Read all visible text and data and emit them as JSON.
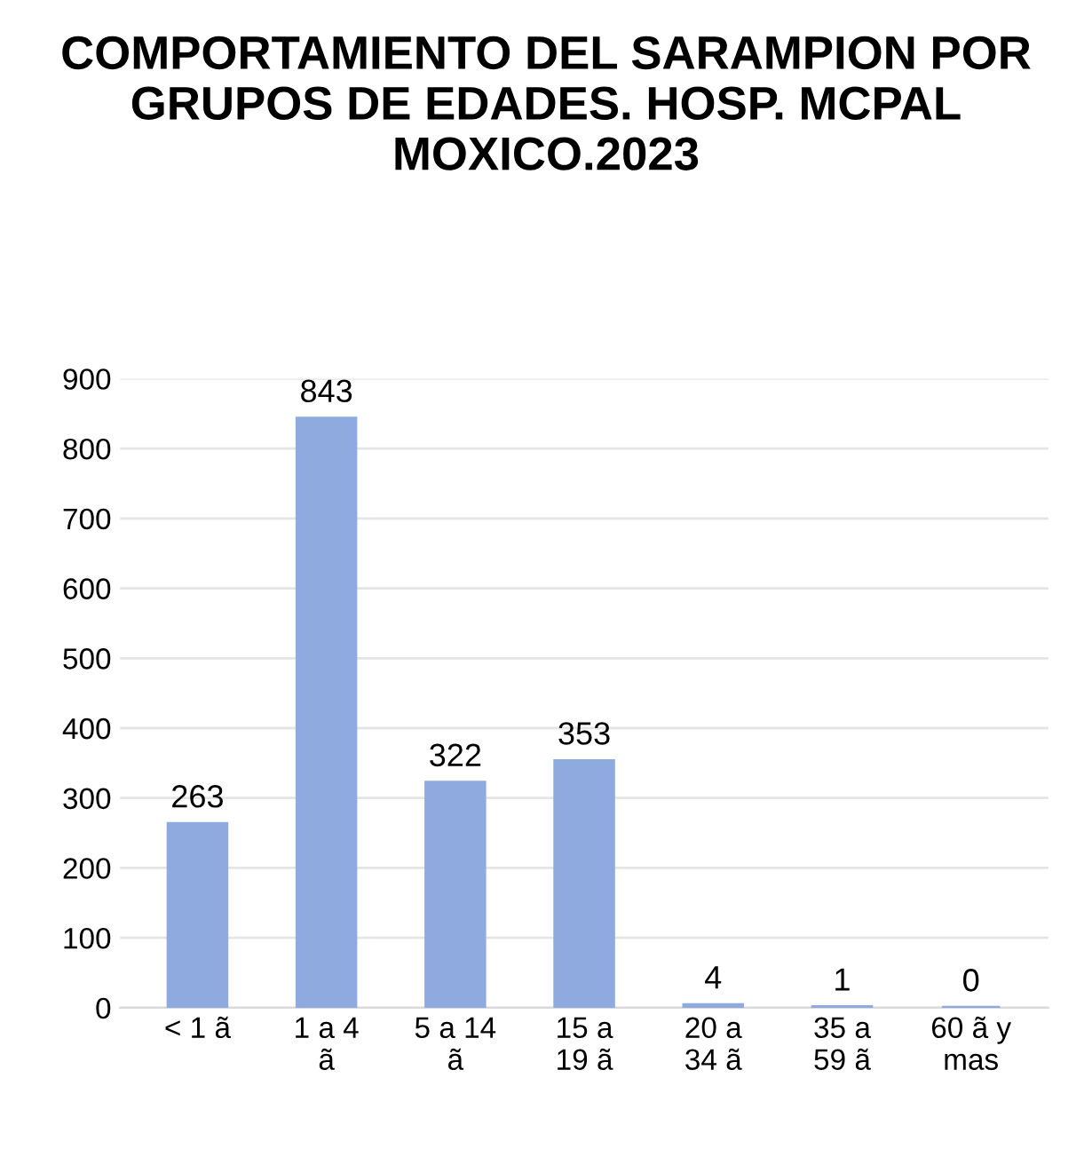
{
  "chart_data": {
    "type": "bar",
    "title": "COMPORTAMIENTO DEL SARAMPION POR GRUPOS DE EDADES. HOSP. MCPAL MOXICO.2023",
    "categories": [
      "< 1 ã",
      "1 a 4 ã",
      "5 a 14 ã",
      "15 a 19 ã",
      "20 a 34 ã",
      "35 a 59 ã",
      "60 ã y mas"
    ],
    "values": [
      263,
      843,
      322,
      353,
      4,
      1,
      0
    ],
    "color": "#8eaadf",
    "ylim": [
      0,
      900
    ],
    "yticks": [
      0,
      100,
      200,
      300,
      400,
      500,
      600,
      700,
      800,
      900
    ],
    "grid": "y",
    "data_labels": true,
    "legend": false
  }
}
